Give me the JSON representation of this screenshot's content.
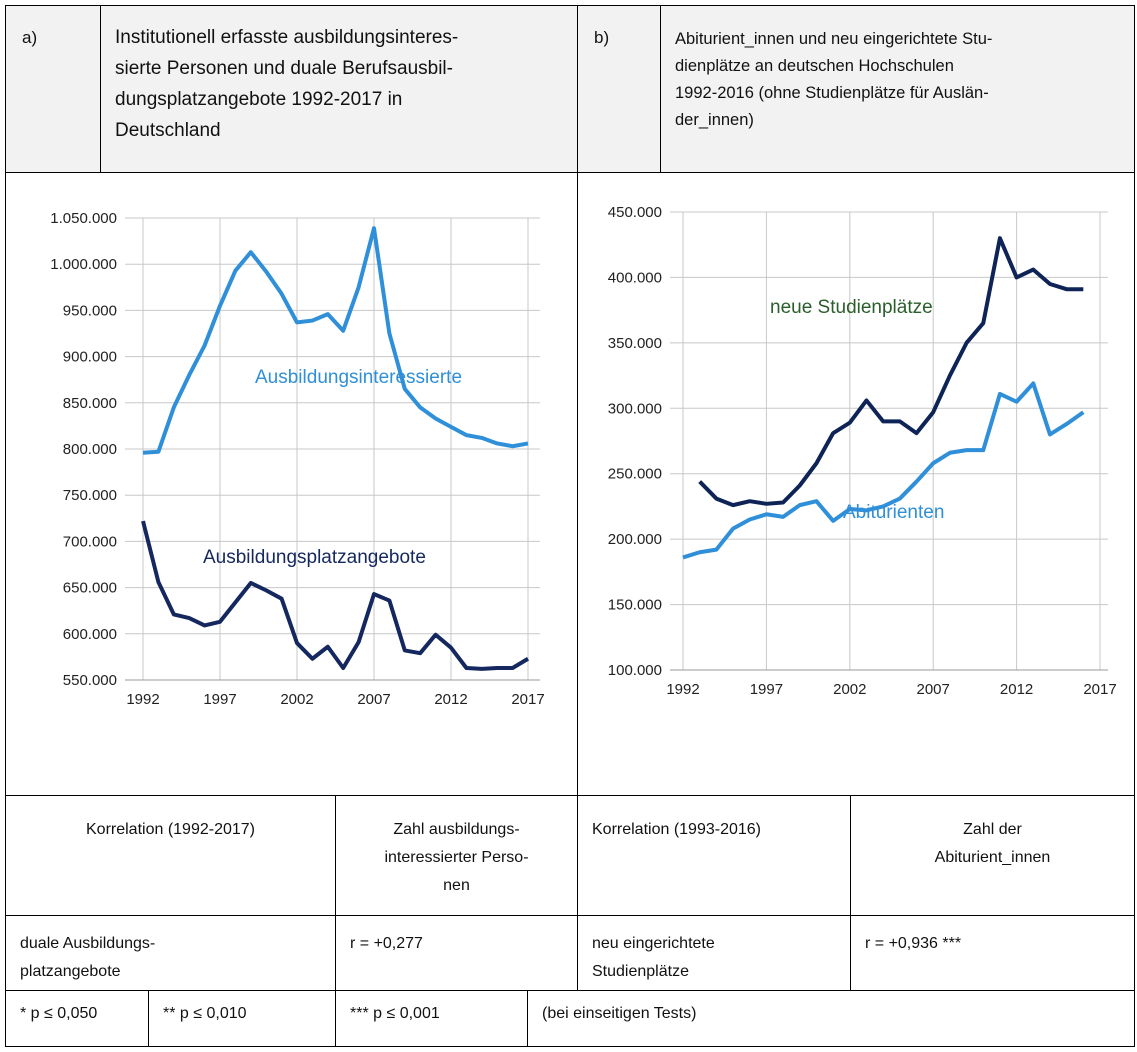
{
  "header": {
    "a_label": "a)",
    "a_title": [
      "Institutionell erfasste ausbildungsinteres-",
      "sierte Personen und duale Berufsausbil-",
      "dungsplatzangebote 1992-2017 in",
      "Deutschland"
    ],
    "b_label": "b)",
    "b_title": [
      "Abiturient_innen und neu eingerichtete Stu-",
      "dienplätze an deutschen Hochschulen",
      "1992-2016 (ohne Studienplätze für Auslän-",
      "der_innen)"
    ]
  },
  "chart_data": [
    {
      "type": "line",
      "x": [
        1992,
        1993,
        1994,
        1995,
        1996,
        1997,
        1998,
        1999,
        2000,
        2001,
        2002,
        2003,
        2004,
        2005,
        2006,
        2007,
        2008,
        2009,
        2010,
        2011,
        2012,
        2013,
        2014,
        2015,
        2016,
        2017
      ],
      "series": [
        {
          "name": "Ausbildungsinteressierte",
          "color": "#2f8fd8",
          "values": [
            796000,
            797000,
            845000,
            880000,
            912000,
            955000,
            993000,
            1013000,
            992000,
            968000,
            937000,
            939000,
            946000,
            928000,
            975000,
            1039000,
            925000,
            865000,
            845000,
            833000,
            824000,
            815000,
            812000,
            806000,
            803000,
            806000
          ]
        },
        {
          "name": "Ausbildungsplatzangebote",
          "color": "#14275f",
          "values": [
            722000,
            656000,
            621000,
            617000,
            609000,
            613000,
            634000,
            655000,
            647000,
            638000,
            590000,
            573000,
            586000,
            563000,
            591000,
            643000,
            636000,
            582000,
            579000,
            599000,
            585000,
            563000,
            562000,
            563000,
            563000,
            573000
          ]
        }
      ],
      "xlim": [
        1992,
        2017
      ],
      "xticks": [
        1992,
        1997,
        2002,
        2007,
        2012,
        2017
      ],
      "ylim": [
        550000,
        1050000
      ],
      "yticks": [
        {
          "value": 550000,
          "label": "550.000"
        },
        {
          "value": 600000,
          "label": "600.000"
        },
        {
          "value": 650000,
          "label": "650.000"
        },
        {
          "value": 700000,
          "label": "700.000"
        },
        {
          "value": 750000,
          "label": "750.000"
        },
        {
          "value": 800000,
          "label": "800.000"
        },
        {
          "value": 850000,
          "label": "850.000"
        },
        {
          "value": 900000,
          "label": "900.000"
        },
        {
          "value": 950000,
          "label": "950.000"
        },
        {
          "value": 1000000,
          "label": "1.000.000"
        },
        {
          "value": 1050000,
          "label": "1.050.000"
        }
      ],
      "grid": true
    },
    {
      "type": "line",
      "x": [
        1992,
        1993,
        1994,
        1995,
        1996,
        1997,
        1998,
        1999,
        2000,
        2001,
        2002,
        2003,
        2004,
        2005,
        2006,
        2007,
        2008,
        2009,
        2010,
        2011,
        2012,
        2013,
        2014,
        2015,
        2016
      ],
      "series": [
        {
          "name": "neue Studienplätze",
          "color": "#0f2456",
          "label_color": "#2b5e2b",
          "values": [
            null,
            244000,
            231000,
            226000,
            229000,
            227000,
            228000,
            241000,
            258000,
            281000,
            289000,
            306000,
            290000,
            290000,
            281000,
            297000,
            325000,
            350000,
            365000,
            430000,
            400000,
            406000,
            395000,
            391000,
            391000
          ]
        },
        {
          "name": "Abiturienten",
          "color": "#2f8fd8",
          "values": [
            186000,
            190000,
            192000,
            208000,
            215000,
            219000,
            217000,
            226000,
            229000,
            214000,
            223000,
            222000,
            225000,
            231000,
            244000,
            258000,
            266000,
            268000,
            268000,
            311000,
            305000,
            319000,
            280000,
            288000,
            297000
          ]
        }
      ],
      "xlim": [
        1992,
        2017
      ],
      "xticks": [
        1992,
        1997,
        2002,
        2007,
        2012,
        2017
      ],
      "ylim": [
        100000,
        450000
      ],
      "yticks": [
        {
          "value": 100000,
          "label": "100.000"
        },
        {
          "value": 150000,
          "label": "150.000"
        },
        {
          "value": 200000,
          "label": "200.000"
        },
        {
          "value": 250000,
          "label": "250.000"
        },
        {
          "value": 300000,
          "label": "300.000"
        },
        {
          "value": 350000,
          "label": "350.000"
        },
        {
          "value": 400000,
          "label": "400.000"
        },
        {
          "value": 450000,
          "label": "450.000"
        }
      ],
      "grid": true
    }
  ],
  "table": {
    "head": [
      "Korrelation (1992-2017)",
      [
        "Zahl ausbildungs-",
        "interessierter Perso-",
        "nen"
      ],
      "Korrelation (1993-2016)",
      [
        "Zahl der",
        "Abiturient_innen"
      ]
    ],
    "row": [
      [
        "duale Ausbildungs-",
        "platzangebote"
      ],
      "r = +0,277",
      [
        "neu eingerichtete",
        "Studienplätze"
      ],
      "r = +0,936 ***"
    ],
    "footer": [
      "* p ≤ 0,050",
      "** p ≤ 0,010",
      "*** p ≤ 0,001",
      "(bei einseitigen Tests)"
    ]
  }
}
